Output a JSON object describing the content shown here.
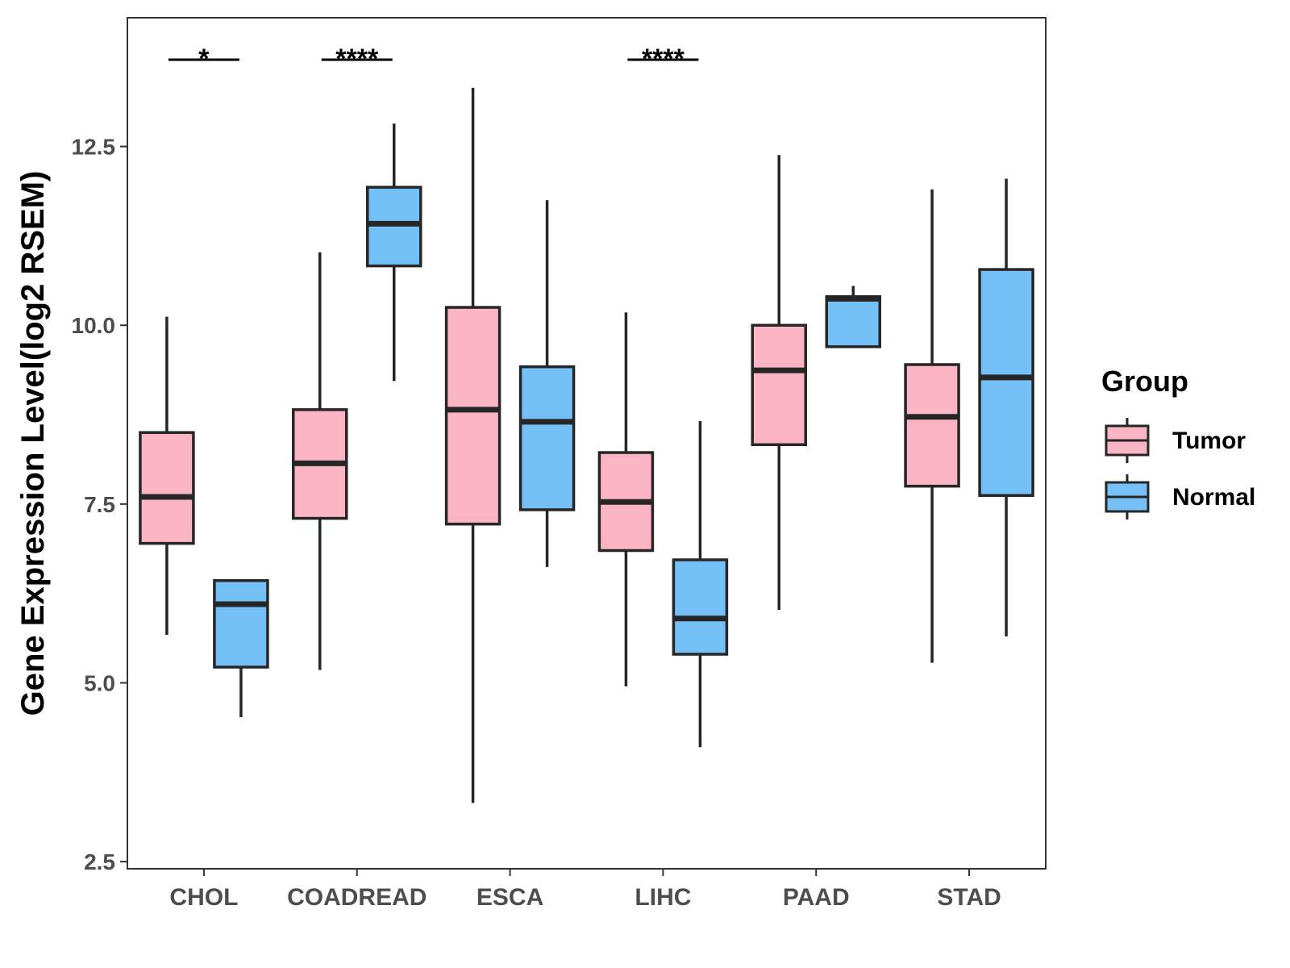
{
  "chart_data": {
    "type": "boxplot",
    "title": "",
    "xlabel": "",
    "ylabel": "Gene Expression Level(log2 RSEM)",
    "ylim": [
      2.4,
      14.3
    ],
    "yticks": [
      2.5,
      5.0,
      7.5,
      10.0,
      12.5
    ],
    "ytick_labels": [
      "2.5",
      "5.0",
      "7.5",
      "10.0",
      "12.5"
    ],
    "categories": [
      "CHOL",
      "COADREAD",
      "ESCA",
      "LIHC",
      "PAAD",
      "STAD"
    ],
    "legend": {
      "title": "Group",
      "position": "right",
      "entries": [
        {
          "name": "Tumor",
          "color": "#fbb4c4"
        },
        {
          "name": "Normal",
          "color": "#75c1f7"
        }
      ]
    },
    "series": [
      {
        "name": "Tumor",
        "color": "#fbb4c4",
        "boxes": [
          {
            "category": "CHOL",
            "min": 5.67,
            "q1": 6.95,
            "median": 7.6,
            "q3": 8.5,
            "max": 10.12
          },
          {
            "category": "COADREAD",
            "min": 5.18,
            "q1": 7.3,
            "median": 8.07,
            "q3": 8.82,
            "max": 11.02
          },
          {
            "category": "ESCA",
            "min": 3.32,
            "q1": 7.22,
            "median": 8.82,
            "q3": 10.25,
            "max": 13.32
          },
          {
            "category": "LIHC",
            "min": 4.95,
            "q1": 6.85,
            "median": 7.53,
            "q3": 8.22,
            "max": 10.18
          },
          {
            "category": "PAAD",
            "min": 6.02,
            "q1": 8.33,
            "median": 9.37,
            "q3": 10.0,
            "max": 12.38
          },
          {
            "category": "STAD",
            "min": 5.28,
            "q1": 7.75,
            "median": 8.72,
            "q3": 9.45,
            "max": 11.9
          }
        ]
      },
      {
        "name": "Normal",
        "color": "#75c1f7",
        "boxes": [
          {
            "category": "CHOL",
            "min": 4.52,
            "q1": 5.22,
            "median": 6.1,
            "q3": 6.43,
            "max": 6.43
          },
          {
            "category": "COADREAD",
            "min": 9.22,
            "q1": 10.83,
            "median": 11.42,
            "q3": 11.93,
            "max": 12.82
          },
          {
            "category": "ESCA",
            "min": 6.62,
            "q1": 7.42,
            "median": 8.65,
            "q3": 9.42,
            "max": 11.75
          },
          {
            "category": "LIHC",
            "min": 4.1,
            "q1": 5.4,
            "median": 5.9,
            "q3": 6.72,
            "max": 8.66
          },
          {
            "category": "PAAD",
            "min": 9.7,
            "q1": 9.7,
            "median": 10.37,
            "q3": 10.4,
            "max": 10.55
          },
          {
            "category": "STAD",
            "min": 5.65,
            "q1": 7.62,
            "median": 9.27,
            "q3": 10.78,
            "max": 12.05
          }
        ]
      }
    ],
    "significance": [
      {
        "category": "CHOL",
        "label": "*"
      },
      {
        "category": "COADREAD",
        "label": "****"
      },
      {
        "category": "LIHC",
        "label": "****"
      }
    ],
    "grid": false
  }
}
